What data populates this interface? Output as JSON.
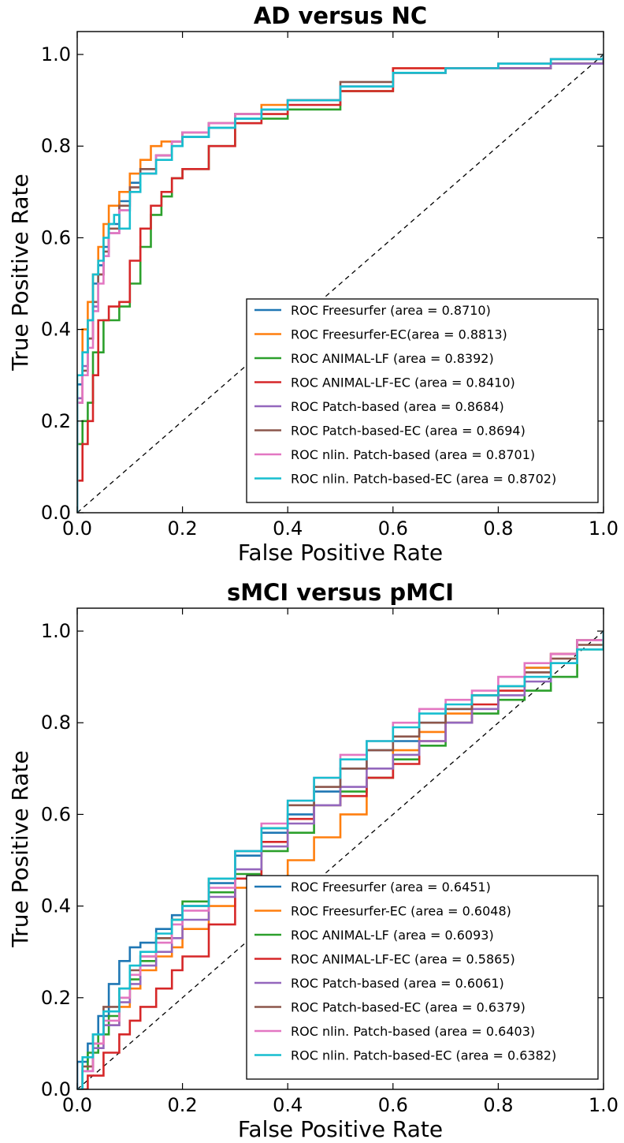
{
  "chart_data": [
    {
      "type": "line",
      "title": "AD versus NC",
      "xlabel": "False Positive Rate",
      "ylabel": "True Positive Rate",
      "xlim": [
        0,
        1
      ],
      "ylim": [
        0,
        1.05
      ],
      "xticks": [
        "0.0",
        "0.2",
        "0.4",
        "0.6",
        "0.8",
        "1.0"
      ],
      "yticks": [
        "0.0",
        "0.2",
        "0.4",
        "0.6",
        "0.8",
        "1.0"
      ],
      "legend_position": "lower-right",
      "diagonal": {
        "x": [
          0,
          1
        ],
        "y": [
          0,
          1
        ],
        "style": "dashed"
      },
      "series": [
        {
          "name": "ROC Freesurfer (area = 0.8710)",
          "color": "#1f77b4",
          "x": [
            0,
            0,
            0.01,
            0.02,
            0.03,
            0.04,
            0.05,
            0.06,
            0.08,
            0.1,
            0.12,
            0.15,
            0.18,
            0.2,
            0.25,
            0.3,
            0.35,
            0.4,
            0.5,
            0.6,
            0.7,
            0.8,
            0.9,
            1.0
          ],
          "y": [
            0,
            0.28,
            0.35,
            0.42,
            0.5,
            0.54,
            0.58,
            0.63,
            0.68,
            0.72,
            0.75,
            0.78,
            0.8,
            0.82,
            0.84,
            0.86,
            0.88,
            0.9,
            0.93,
            0.96,
            0.97,
            0.97,
            0.98,
            1.0
          ]
        },
        {
          "name": "ROC Freesurfer-EC(area = 0.8813)",
          "color": "#ff7f0e",
          "x": [
            0,
            0,
            0.01,
            0.02,
            0.03,
            0.04,
            0.05,
            0.06,
            0.08,
            0.1,
            0.12,
            0.14,
            0.16,
            0.2,
            0.25,
            0.3,
            0.35,
            0.4,
            0.5,
            0.6,
            0.7,
            0.8,
            0.9,
            1.0
          ],
          "y": [
            0,
            0.25,
            0.4,
            0.46,
            0.52,
            0.58,
            0.63,
            0.67,
            0.7,
            0.74,
            0.77,
            0.8,
            0.81,
            0.83,
            0.85,
            0.87,
            0.89,
            0.9,
            0.92,
            0.97,
            0.97,
            0.97,
            0.98,
            1.0
          ]
        },
        {
          "name": "ROC ANIMAL-LF (area = 0.8392)",
          "color": "#2ca02c",
          "x": [
            0,
            0,
            0.01,
            0.02,
            0.03,
            0.05,
            0.08,
            0.1,
            0.12,
            0.14,
            0.16,
            0.18,
            0.2,
            0.25,
            0.3,
            0.35,
            0.4,
            0.5,
            0.6,
            0.7,
            0.8,
            0.9,
            1.0
          ],
          "y": [
            0,
            0.15,
            0.2,
            0.24,
            0.35,
            0.42,
            0.45,
            0.5,
            0.58,
            0.65,
            0.69,
            0.73,
            0.75,
            0.8,
            0.85,
            0.86,
            0.88,
            0.92,
            0.96,
            0.97,
            0.97,
            0.98,
            1.0
          ]
        },
        {
          "name": "ROC ANIMAL-LF-EC (area = 0.8410)",
          "color": "#d62728",
          "x": [
            0,
            0,
            0.01,
            0.02,
            0.03,
            0.04,
            0.06,
            0.08,
            0.1,
            0.12,
            0.14,
            0.16,
            0.18,
            0.2,
            0.25,
            0.3,
            0.35,
            0.4,
            0.5,
            0.6,
            0.7,
            0.8,
            0.9,
            1.0
          ],
          "y": [
            0,
            0.07,
            0.15,
            0.2,
            0.3,
            0.42,
            0.45,
            0.46,
            0.55,
            0.62,
            0.67,
            0.7,
            0.73,
            0.75,
            0.8,
            0.85,
            0.87,
            0.89,
            0.92,
            0.97,
            0.97,
            0.97,
            0.98,
            0.98
          ]
        },
        {
          "name": "ROC Patch-based (area = 0.8684)",
          "color": "#9467bd",
          "x": [
            0,
            0,
            0.01,
            0.02,
            0.03,
            0.04,
            0.05,
            0.06,
            0.08,
            0.1,
            0.12,
            0.15,
            0.18,
            0.2,
            0.25,
            0.3,
            0.35,
            0.4,
            0.5,
            0.6,
            0.7,
            0.8,
            0.9,
            1.0
          ],
          "y": [
            0,
            0.25,
            0.32,
            0.38,
            0.45,
            0.52,
            0.56,
            0.61,
            0.66,
            0.71,
            0.74,
            0.78,
            0.81,
            0.83,
            0.85,
            0.87,
            0.88,
            0.9,
            0.93,
            0.96,
            0.97,
            0.97,
            0.98,
            1.0
          ]
        },
        {
          "name": "ROC Patch-based-EC (area = 0.8694)",
          "color": "#8c564b",
          "x": [
            0,
            0,
            0.01,
            0.02,
            0.03,
            0.04,
            0.05,
            0.06,
            0.08,
            0.1,
            0.12,
            0.15,
            0.18,
            0.2,
            0.25,
            0.3,
            0.35,
            0.4,
            0.5,
            0.6,
            0.7,
            0.8,
            0.9,
            1.0
          ],
          "y": [
            0,
            0.24,
            0.31,
            0.38,
            0.46,
            0.52,
            0.57,
            0.62,
            0.67,
            0.71,
            0.75,
            0.78,
            0.81,
            0.83,
            0.85,
            0.87,
            0.88,
            0.9,
            0.94,
            0.96,
            0.97,
            0.98,
            0.99,
            1.0
          ]
        },
        {
          "name": "ROC nlin. Patch-based (area = 0.8701)",
          "color": "#e377c2",
          "x": [
            0,
            0,
            0.01,
            0.02,
            0.03,
            0.04,
            0.05,
            0.06,
            0.08,
            0.1,
            0.12,
            0.15,
            0.18,
            0.2,
            0.25,
            0.3,
            0.35,
            0.4,
            0.5,
            0.6,
            0.7,
            0.8,
            0.9,
            1.0
          ],
          "y": [
            0,
            0.24,
            0.3,
            0.36,
            0.44,
            0.5,
            0.56,
            0.61,
            0.66,
            0.7,
            0.74,
            0.78,
            0.81,
            0.83,
            0.85,
            0.87,
            0.88,
            0.9,
            0.93,
            0.96,
            0.97,
            0.98,
            0.99,
            1.0
          ]
        },
        {
          "name": "ROC nlin. Patch-based-EC (area = 0.8702)",
          "color": "#17becf",
          "x": [
            0,
            0,
            0.01,
            0.02,
            0.03,
            0.04,
            0.05,
            0.06,
            0.07,
            0.08,
            0.1,
            0.12,
            0.15,
            0.18,
            0.2,
            0.25,
            0.3,
            0.35,
            0.4,
            0.5,
            0.6,
            0.7,
            0.8,
            0.9,
            1.0
          ],
          "y": [
            0,
            0.3,
            0.35,
            0.42,
            0.52,
            0.55,
            0.6,
            0.63,
            0.65,
            0.62,
            0.7,
            0.74,
            0.77,
            0.8,
            0.82,
            0.84,
            0.86,
            0.88,
            0.9,
            0.93,
            0.96,
            0.97,
            0.98,
            0.99,
            1.0
          ]
        }
      ]
    },
    {
      "type": "line",
      "title": "sMCI versus pMCI",
      "xlabel": "False Positive Rate",
      "ylabel": "True Positive Rate",
      "xlim": [
        0,
        1
      ],
      "ylim": [
        0,
        1.05
      ],
      "xticks": [
        "0.0",
        "0.2",
        "0.4",
        "0.6",
        "0.8",
        "1.0"
      ],
      "yticks": [
        "0.0",
        "0.2",
        "0.4",
        "0.6",
        "0.8",
        "1.0"
      ],
      "legend_position": "lower-right",
      "diagonal": {
        "x": [
          0,
          1
        ],
        "y": [
          0,
          1
        ],
        "style": "dashed"
      },
      "series": [
        {
          "name": "ROC Freesurfer (area = 0.6451)",
          "color": "#1f77b4",
          "x": [
            0,
            0,
            0.02,
            0.04,
            0.06,
            0.08,
            0.1,
            0.12,
            0.15,
            0.18,
            0.2,
            0.25,
            0.3,
            0.35,
            0.4,
            0.45,
            0.5,
            0.55,
            0.6,
            0.65,
            0.7,
            0.75,
            0.8,
            0.85,
            0.9,
            0.95,
            1.0
          ],
          "y": [
            0,
            0.06,
            0.1,
            0.16,
            0.23,
            0.28,
            0.31,
            0.32,
            0.35,
            0.38,
            0.4,
            0.45,
            0.51,
            0.56,
            0.6,
            0.65,
            0.7,
            0.74,
            0.76,
            0.8,
            0.83,
            0.86,
            0.88,
            0.92,
            0.95,
            0.98,
            1.0
          ]
        },
        {
          "name": "ROC Freesurfer-EC (area = 0.6048)",
          "color": "#ff7f0e",
          "x": [
            0,
            0.01,
            0.03,
            0.05,
            0.08,
            0.1,
            0.12,
            0.15,
            0.18,
            0.2,
            0.25,
            0.3,
            0.35,
            0.4,
            0.45,
            0.5,
            0.55,
            0.6,
            0.65,
            0.7,
            0.75,
            0.8,
            0.85,
            0.9,
            0.95,
            1.0
          ],
          "y": [
            0,
            0.05,
            0.1,
            0.14,
            0.18,
            0.22,
            0.26,
            0.29,
            0.31,
            0.35,
            0.4,
            0.44,
            0.46,
            0.5,
            0.55,
            0.6,
            0.68,
            0.74,
            0.78,
            0.82,
            0.86,
            0.88,
            0.92,
            0.95,
            0.98,
            1.0
          ]
        },
        {
          "name": "ROC ANIMAL-LF (area = 0.6093)",
          "color": "#2ca02c",
          "x": [
            0,
            0.01,
            0.02,
            0.04,
            0.06,
            0.08,
            0.1,
            0.12,
            0.15,
            0.18,
            0.2,
            0.25,
            0.3,
            0.35,
            0.4,
            0.45,
            0.5,
            0.55,
            0.6,
            0.65,
            0.7,
            0.75,
            0.8,
            0.85,
            0.9,
            0.95,
            1.0
          ],
          "y": [
            0,
            0.04,
            0.08,
            0.12,
            0.16,
            0.2,
            0.24,
            0.28,
            0.33,
            0.37,
            0.41,
            0.43,
            0.47,
            0.52,
            0.56,
            0.62,
            0.65,
            0.68,
            0.72,
            0.75,
            0.8,
            0.82,
            0.85,
            0.87,
            0.9,
            0.96,
            1.0
          ]
        },
        {
          "name": "ROC ANIMAL-LF-EC (area = 0.5865)",
          "color": "#d62728",
          "x": [
            0,
            0.02,
            0.05,
            0.08,
            0.1,
            0.12,
            0.15,
            0.18,
            0.2,
            0.25,
            0.3,
            0.35,
            0.4,
            0.45,
            0.5,
            0.55,
            0.6,
            0.65,
            0.7,
            0.75,
            0.8,
            0.85,
            0.9,
            0.95,
            1.0
          ],
          "y": [
            0,
            0.03,
            0.08,
            0.12,
            0.15,
            0.18,
            0.22,
            0.26,
            0.29,
            0.36,
            0.46,
            0.54,
            0.59,
            0.62,
            0.64,
            0.68,
            0.71,
            0.76,
            0.8,
            0.84,
            0.87,
            0.91,
            0.95,
            0.98,
            1.0
          ]
        },
        {
          "name": "ROC Patch-based (area = 0.6061)",
          "color": "#9467bd",
          "x": [
            0,
            0.01,
            0.03,
            0.05,
            0.08,
            0.1,
            0.12,
            0.15,
            0.18,
            0.2,
            0.25,
            0.3,
            0.35,
            0.4,
            0.45,
            0.5,
            0.55,
            0.6,
            0.65,
            0.7,
            0.75,
            0.8,
            0.85,
            0.9,
            0.95,
            1.0
          ],
          "y": [
            0,
            0.04,
            0.09,
            0.14,
            0.19,
            0.23,
            0.27,
            0.3,
            0.33,
            0.37,
            0.42,
            0.48,
            0.53,
            0.58,
            0.62,
            0.66,
            0.7,
            0.73,
            0.76,
            0.8,
            0.83,
            0.86,
            0.89,
            0.93,
            0.98,
            1.0
          ]
        },
        {
          "name": "ROC Patch-based-EC (area = 0.6379)",
          "color": "#8c564b",
          "x": [
            0,
            0.01,
            0.03,
            0.05,
            0.08,
            0.1,
            0.12,
            0.15,
            0.18,
            0.2,
            0.25,
            0.3,
            0.35,
            0.4,
            0.45,
            0.5,
            0.55,
            0.6,
            0.65,
            0.7,
            0.75,
            0.8,
            0.85,
            0.9,
            0.95,
            1.0
          ],
          "y": [
            0,
            0.05,
            0.12,
            0.18,
            0.22,
            0.26,
            0.29,
            0.33,
            0.37,
            0.4,
            0.46,
            0.52,
            0.57,
            0.62,
            0.66,
            0.7,
            0.74,
            0.77,
            0.8,
            0.83,
            0.86,
            0.88,
            0.91,
            0.94,
            0.97,
            1.0
          ]
        },
        {
          "name": "ROC nlin. Patch-based (area = 0.6403)",
          "color": "#e377c2",
          "x": [
            0,
            0.01,
            0.03,
            0.05,
            0.08,
            0.1,
            0.12,
            0.15,
            0.18,
            0.2,
            0.25,
            0.3,
            0.35,
            0.4,
            0.45,
            0.5,
            0.55,
            0.6,
            0.65,
            0.7,
            0.75,
            0.8,
            0.85,
            0.9,
            0.95,
            1.0
          ],
          "y": [
            0,
            0.04,
            0.1,
            0.15,
            0.2,
            0.25,
            0.29,
            0.32,
            0.36,
            0.39,
            0.44,
            0.52,
            0.58,
            0.63,
            0.68,
            0.73,
            0.76,
            0.8,
            0.83,
            0.85,
            0.87,
            0.9,
            0.93,
            0.95,
            0.98,
            1.0
          ]
        },
        {
          "name": "ROC nlin. Patch-based-EC (area = 0.6382)",
          "color": "#17becf",
          "x": [
            0,
            0.01,
            0.03,
            0.05,
            0.08,
            0.1,
            0.12,
            0.15,
            0.18,
            0.2,
            0.25,
            0.3,
            0.35,
            0.4,
            0.45,
            0.5,
            0.55,
            0.6,
            0.65,
            0.7,
            0.75,
            0.8,
            0.85,
            0.9,
            0.95,
            1.0
          ],
          "y": [
            0,
            0.07,
            0.12,
            0.17,
            0.22,
            0.27,
            0.3,
            0.34,
            0.37,
            0.4,
            0.46,
            0.52,
            0.57,
            0.63,
            0.68,
            0.72,
            0.76,
            0.79,
            0.82,
            0.84,
            0.86,
            0.88,
            0.9,
            0.93,
            0.96,
            1.0
          ]
        }
      ]
    }
  ]
}
